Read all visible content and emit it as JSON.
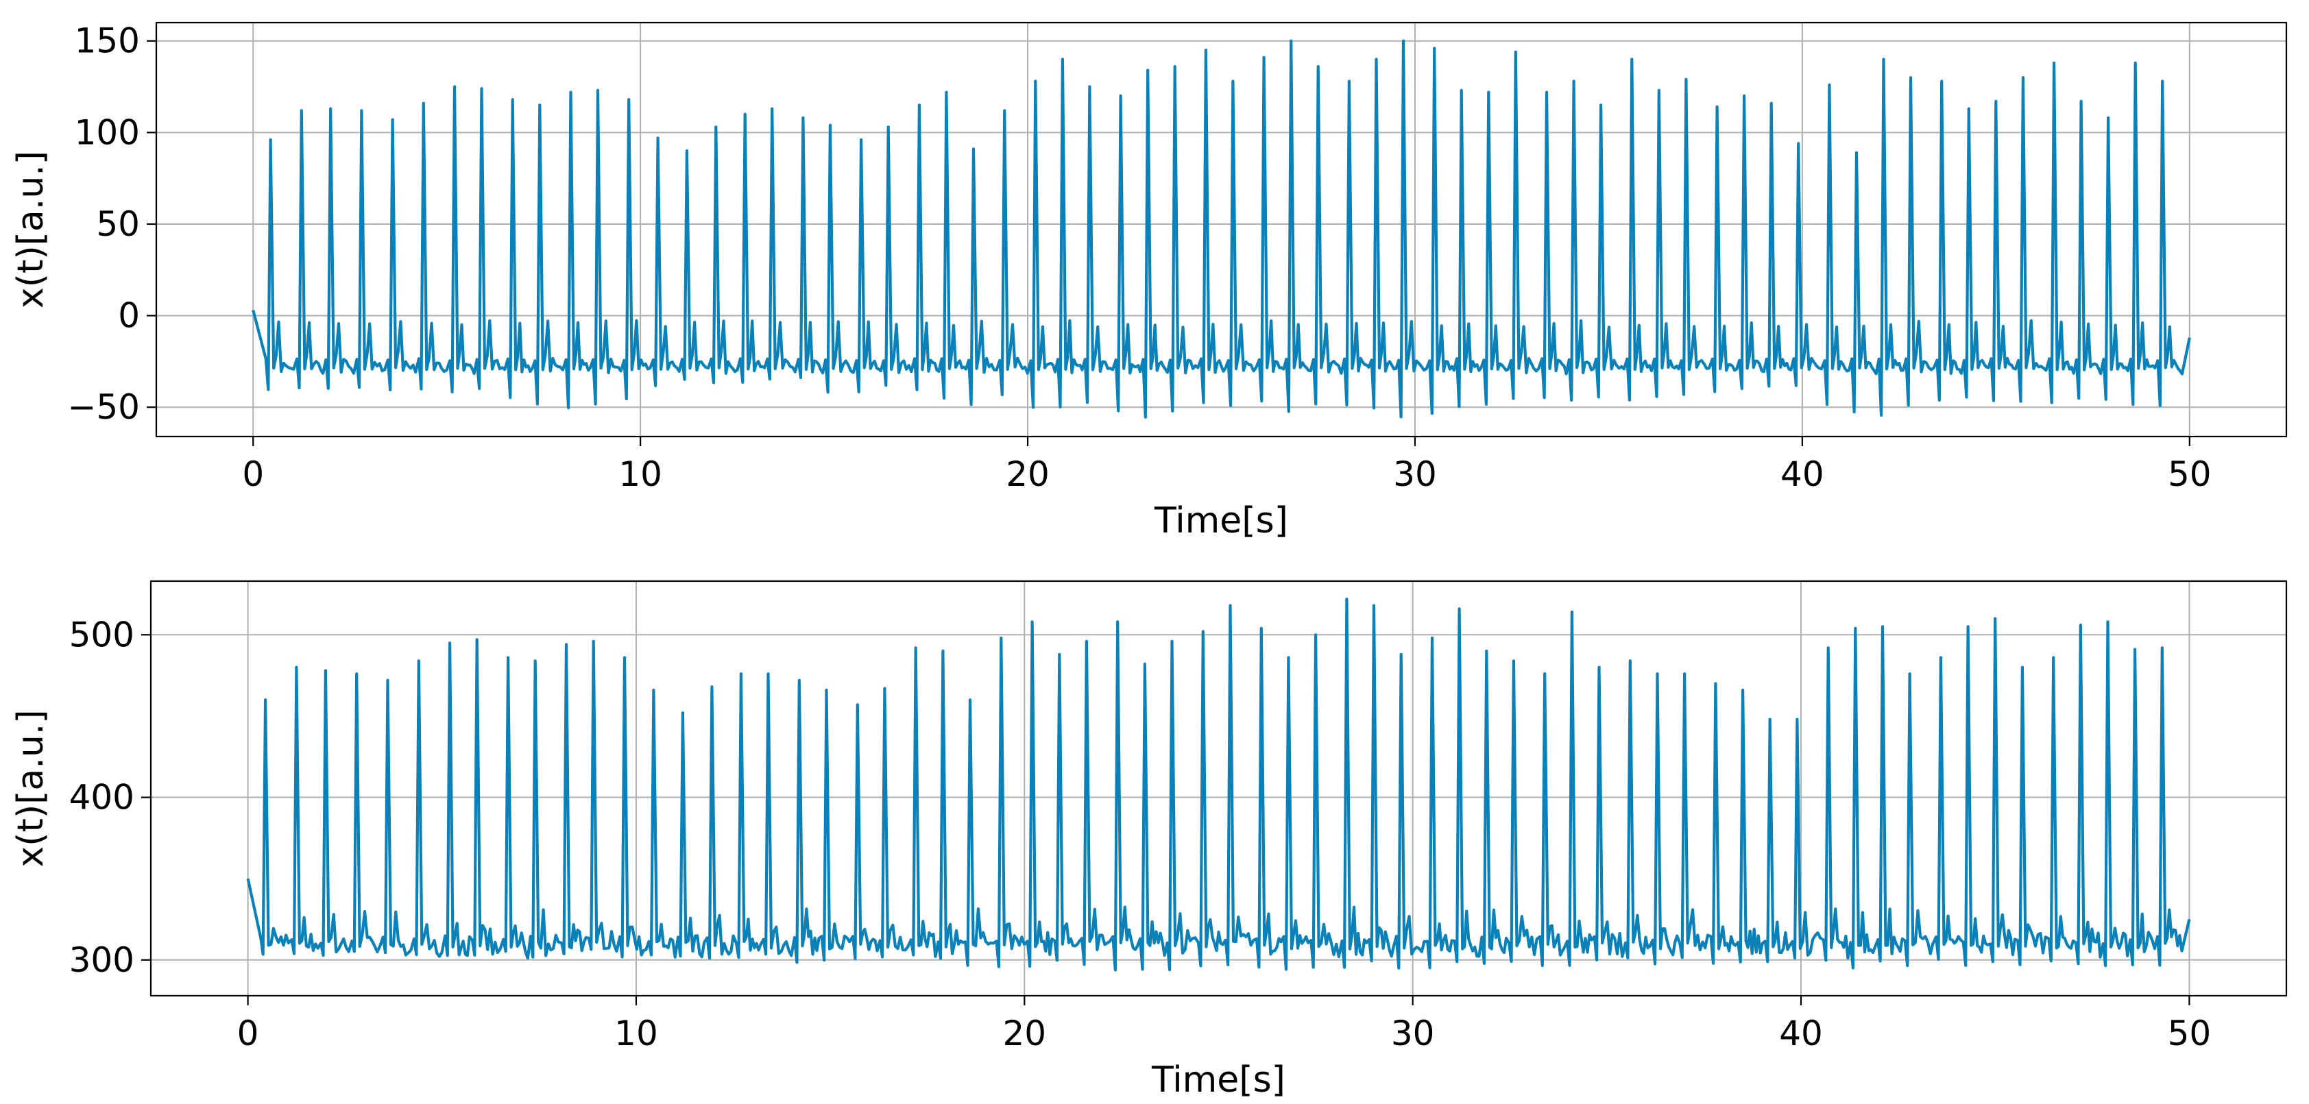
{
  "colors": {
    "line": "#0a82b9",
    "grid": "#b0b0b0",
    "axes": "#000000",
    "background": "#ffffff"
  },
  "chart_data": [
    {
      "type": "line",
      "xlabel": "Time[s]",
      "ylabel": "x(t)[a.u.]",
      "xlim": [
        -2.5,
        52.5
      ],
      "ylim": [
        -66,
        160
      ],
      "xticks": [
        0,
        10,
        20,
        30,
        40,
        50
      ],
      "xtick_labels": [
        "0",
        "10",
        "20",
        "30",
        "40",
        "50"
      ],
      "yticks": [
        -50,
        0,
        50,
        100,
        150
      ],
      "ytick_labels": [
        "−50",
        "0",
        "50",
        "100",
        "150"
      ],
      "grid": true,
      "series": [
        {
          "x_start": 0,
          "x_end": 50,
          "baseline": -20,
          "trough": -40,
          "start_value": 3,
          "end_value": -12,
          "beat_times": [
            0.45,
            1.25,
            2.0,
            2.8,
            3.6,
            4.4,
            5.2,
            5.9,
            6.7,
            7.4,
            8.2,
            8.9,
            9.7,
            10.45,
            11.2,
            11.95,
            12.7,
            13.4,
            14.2,
            14.9,
            15.7,
            16.4,
            17.2,
            17.9,
            18.6,
            19.4,
            20.2,
            20.9,
            21.6,
            22.4,
            23.1,
            23.8,
            24.6,
            25.3,
            26.1,
            26.8,
            27.5,
            28.3,
            29.0,
            29.7,
            30.5,
            31.2,
            31.9,
            32.6,
            33.4,
            34.1,
            34.8,
            35.6,
            36.3,
            37.0,
            37.8,
            38.5,
            39.2,
            39.9,
            40.7,
            41.4,
            42.1,
            42.8,
            43.6,
            44.3,
            45.0,
            45.7,
            46.5,
            47.2,
            47.9,
            48.6,
            49.3
          ],
          "beat_peaks": [
            96,
            112,
            113,
            112,
            107,
            116,
            125,
            124,
            118,
            115,
            122,
            123,
            118,
            97,
            90,
            103,
            110,
            113,
            108,
            104,
            96,
            103,
            115,
            122,
            91,
            112,
            128,
            140,
            125,
            120,
            134,
            136,
            145,
            128,
            141,
            150,
            136,
            128,
            140,
            150,
            146,
            123,
            122,
            144,
            122,
            128,
            115,
            140,
            123,
            129,
            114,
            120,
            116,
            94,
            126,
            89,
            140,
            130,
            128,
            113,
            117,
            130,
            138,
            117,
            108,
            138,
            128
          ],
          "beat_troughs": [
            -40,
            -39,
            -40,
            -39,
            -40,
            -40,
            -42,
            -40,
            -45,
            -48,
            -50,
            -48,
            -46,
            -38,
            -35,
            -37,
            -36,
            -35,
            -34,
            -42,
            -42,
            -38,
            -40,
            -45,
            -48,
            -43,
            -50,
            -50,
            -48,
            -52,
            -55,
            -52,
            -48,
            -49,
            -47,
            -52,
            -48,
            -49,
            -50,
            -55,
            -53,
            -50,
            -48,
            -45,
            -45,
            -46,
            -45,
            -46,
            -44,
            -43,
            -42,
            -40,
            -38,
            -38,
            -48,
            -52,
            -54,
            -49,
            -46,
            -45,
            -46,
            -47,
            -48,
            -45,
            -46,
            -48,
            -49
          ]
        }
      ]
    },
    {
      "type": "line",
      "xlabel": "Time[s]",
      "ylabel": "x(t)[a.u.]",
      "xlim": [
        -2.5,
        52.5
      ],
      "ylim": [
        278,
        533
      ],
      "xticks": [
        0,
        10,
        20,
        30,
        40,
        50
      ],
      "xtick_labels": [
        "0",
        "10",
        "20",
        "30",
        "40",
        "50"
      ],
      "yticks": [
        300,
        400,
        500
      ],
      "ytick_labels": [
        "300",
        "400",
        "500"
      ],
      "grid": true,
      "series": [
        {
          "x_start": 0,
          "x_end": 50,
          "baseline": 315,
          "trough": 302,
          "start_value": 350,
          "end_value": 325,
          "beat_times": [
            0.45,
            1.25,
            2.0,
            2.8,
            3.6,
            4.4,
            5.2,
            5.9,
            6.7,
            7.4,
            8.2,
            8.9,
            9.7,
            10.45,
            11.2,
            11.95,
            12.7,
            13.4,
            14.2,
            14.9,
            15.7,
            16.4,
            17.2,
            17.9,
            18.6,
            19.4,
            20.2,
            20.9,
            21.6,
            22.4,
            23.1,
            23.8,
            24.6,
            25.3,
            26.1,
            26.8,
            27.5,
            28.3,
            29.0,
            29.7,
            30.5,
            31.2,
            31.9,
            32.6,
            33.4,
            34.1,
            34.8,
            35.6,
            36.3,
            37.0,
            37.8,
            38.5,
            39.2,
            39.9,
            40.7,
            41.4,
            42.1,
            42.8,
            43.6,
            44.3,
            45.0,
            45.7,
            46.5,
            47.2,
            47.9,
            48.6,
            49.3
          ],
          "beat_peaks": [
            460,
            480,
            478,
            476,
            472,
            484,
            495,
            497,
            486,
            484,
            494,
            496,
            486,
            466,
            452,
            468,
            476,
            476,
            472,
            466,
            457,
            467,
            492,
            490,
            460,
            498,
            508,
            488,
            496,
            508,
            482,
            496,
            502,
            518,
            504,
            486,
            500,
            522,
            518,
            488,
            498,
            516,
            490,
            484,
            476,
            514,
            480,
            484,
            476,
            476,
            470,
            466,
            448,
            448,
            492,
            504,
            505,
            476,
            486,
            505,
            510,
            480,
            486,
            506,
            508,
            491,
            492
          ],
          "beat_troughs": [
            305,
            305,
            304,
            303,
            302,
            302,
            303,
            304,
            304,
            303,
            305,
            305,
            303,
            301,
            300,
            302,
            303,
            302,
            301,
            300,
            301,
            300,
            302,
            300,
            299,
            298,
            297,
            298,
            297,
            296,
            295,
            296,
            297,
            296,
            297,
            296,
            295,
            296,
            297,
            296,
            296,
            297,
            298,
            297,
            297,
            298,
            298,
            299,
            299,
            300,
            300,
            301,
            301,
            300,
            298,
            297,
            297,
            298,
            298,
            297,
            298,
            298,
            297,
            297,
            296,
            297,
            297
          ]
        }
      ]
    }
  ]
}
